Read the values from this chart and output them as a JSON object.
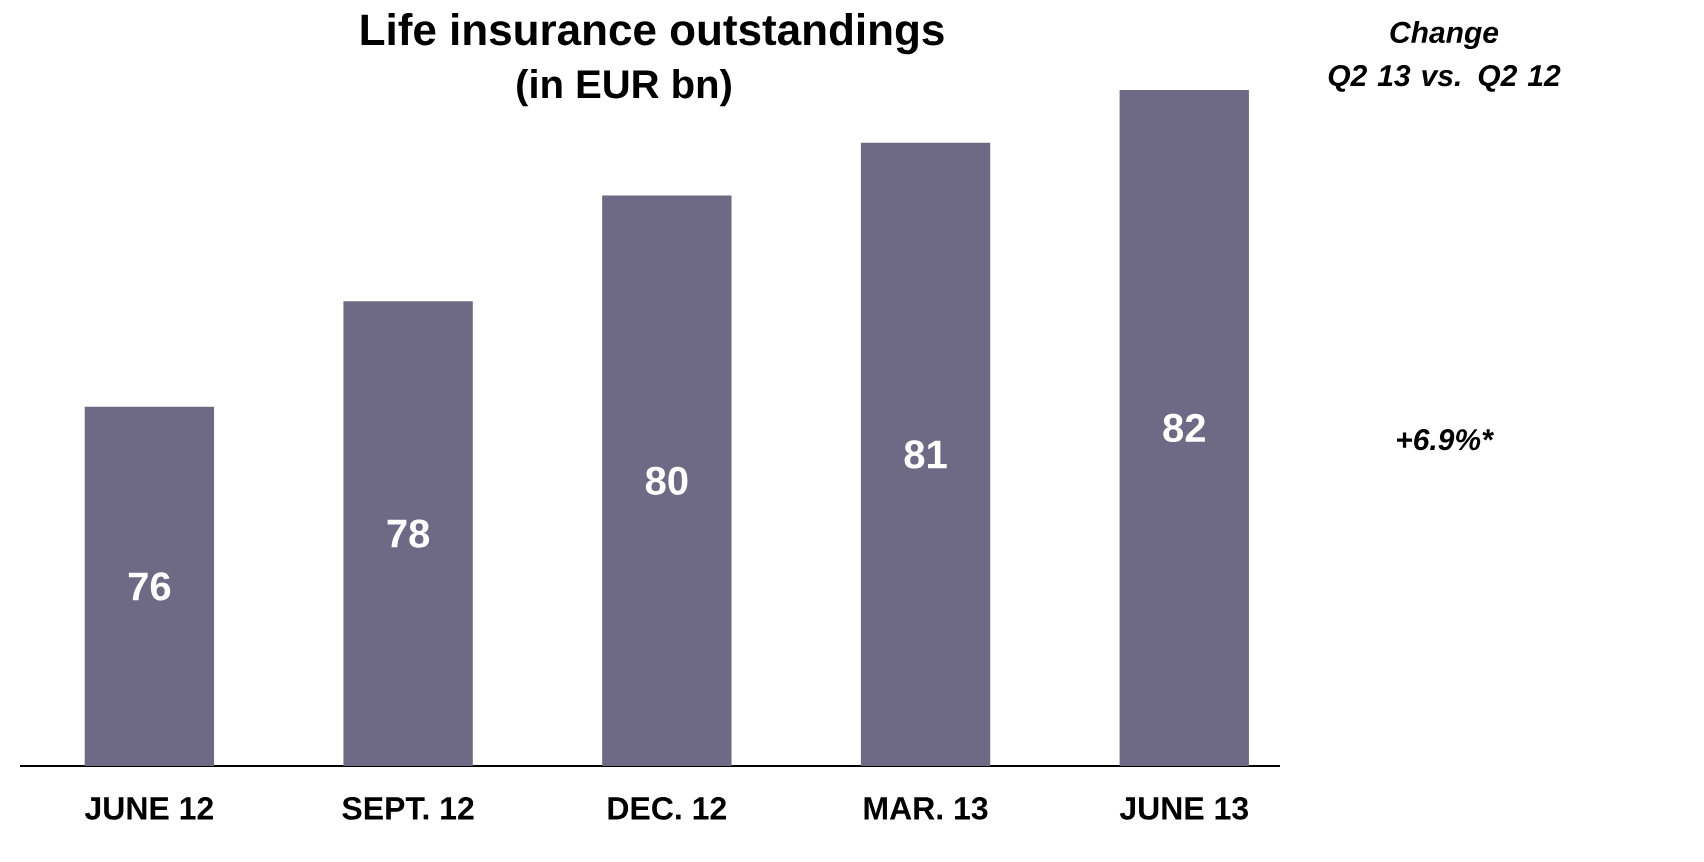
{
  "chart_data": {
    "type": "bar",
    "title": "Life insurance outstandings",
    "subtitle": "(in EUR bn)",
    "categories": [
      "JUNE 12",
      "SEPT. 12",
      "DEC. 12",
      "MAR. 13",
      "JUNE 13"
    ],
    "values": [
      76,
      78,
      80,
      81,
      82
    ],
    "color": "#6e6a85",
    "data_labels": true,
    "ylim": [
      69.2,
      82
    ],
    "tick_labels": "x",
    "annotations": [
      "Change",
      "Q2 13 vs. Q2 12",
      "+6.9%*"
    ]
  }
}
